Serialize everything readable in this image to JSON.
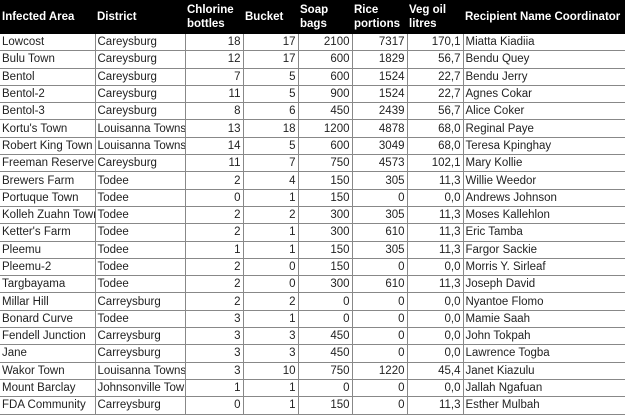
{
  "headers": [
    "Infected Area",
    "District",
    "Chlorine bottles",
    "Bucket",
    "Soap bags",
    "Rice portions",
    "Veg oil litres",
    "Recipient Name Coordinator"
  ],
  "rows": [
    [
      "Lowcost",
      "Careysburg",
      "18",
      "17",
      "2100",
      "7317",
      "170,1",
      "Miatta Kiadiia"
    ],
    [
      "Bulu Town",
      "Careysburg",
      "12",
      "17",
      "600",
      "1829",
      "56,7",
      "Bendu Quey"
    ],
    [
      "Bentol",
      "Careysburg",
      "7",
      "5",
      "600",
      "1524",
      "22,7",
      "Bendu Jerry"
    ],
    [
      "Bentol-2",
      "Careysburg",
      "11",
      "5",
      "900",
      "1524",
      "22,7",
      "Agnes Cokar"
    ],
    [
      "Bentol-3",
      "Careysburg",
      "8",
      "6",
      "450",
      "2439",
      "56,7",
      "Alice Coker"
    ],
    [
      "Kortu's Town",
      "Louisanna Towns",
      "13",
      "18",
      "1200",
      "4878",
      "68,0",
      "Reginal Paye"
    ],
    [
      "Robert King Town",
      "Louisanna Towns",
      "14",
      "5",
      "600",
      "3049",
      "68,0",
      "Teresa Kpinghay"
    ],
    [
      "Freeman Reserve",
      "Careysburg",
      "11",
      "7",
      "750",
      "4573",
      "102,1",
      "Mary Kollie"
    ],
    [
      "Brewers Farm",
      "Todee",
      "2",
      "4",
      "150",
      "305",
      "11,3",
      "Willie Weedor"
    ],
    [
      "Portuque Town",
      "Todee",
      "0",
      "1",
      "150",
      "0",
      "0,0",
      "Andrews Johnson"
    ],
    [
      "Kolleh Zuahn Town",
      "Todee",
      "2",
      "2",
      "300",
      "305",
      "11,3",
      "Moses Kallehlon"
    ],
    [
      "Ketter's Farm",
      "Todee",
      "2",
      "1",
      "300",
      "610",
      "11,3",
      "Eric Tamba"
    ],
    [
      "Pleemu",
      "Todee",
      "1",
      "1",
      "150",
      "305",
      "11,3",
      "Fargor Sackie"
    ],
    [
      "Pleemu-2",
      "Todee",
      "2",
      "0",
      "150",
      "0",
      "0,0",
      "Morris Y. Sirleaf"
    ],
    [
      "Targbayama",
      "Todee",
      "2",
      "0",
      "300",
      "610",
      "11,3",
      "Joseph David"
    ],
    [
      "Millar Hill",
      "Carreysburg",
      "2",
      "2",
      "0",
      "0",
      "0,0",
      "Nyantoe Flomo"
    ],
    [
      "Bonard Curve",
      "Todee",
      "3",
      "1",
      "0",
      "0",
      "0,0",
      "Mamie Saah"
    ],
    [
      "Fendell Junction",
      "Carreysburg",
      "3",
      "3",
      "450",
      "0",
      "0,0",
      "John Tokpah"
    ],
    [
      "Jane",
      "Carreysburg",
      "3",
      "3",
      "450",
      "0",
      "0,0",
      "Lawrence Togba"
    ],
    [
      "Wakor Town",
      "Louisanna Towns",
      "3",
      "10",
      "750",
      "1220",
      "45,4",
      "Janet Kiazulu"
    ],
    [
      "Mount Barclay",
      "Johnsonville Town",
      "1",
      "1",
      "0",
      "0",
      "0,0",
      "Jallah Ngafuan"
    ],
    [
      "FDA Community",
      "Carreysburg",
      "0",
      "1",
      "150",
      "0",
      "11,3",
      "Esther Mulbah"
    ]
  ]
}
